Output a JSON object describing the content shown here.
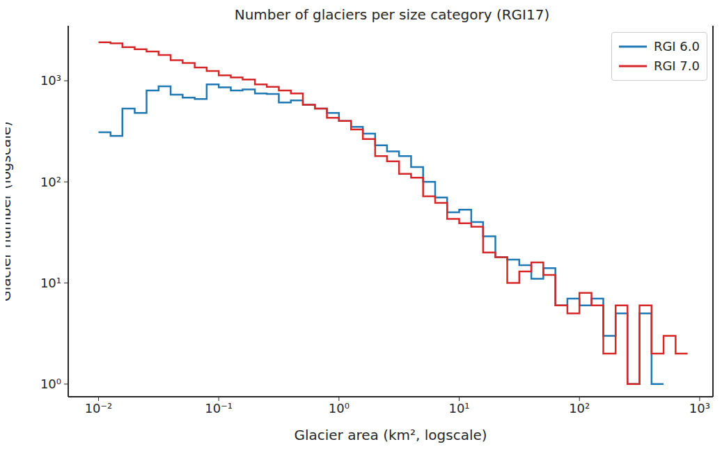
{
  "chart_data": {
    "type": "histogram",
    "title": "Number of glaciers per size category (RGI17)",
    "x_label": "Glacier area (km², logscale)",
    "y_label": "Glacier number (logscale)",
    "bins": [
      0.01,
      0.0126,
      0.0158,
      0.02,
      0.0251,
      0.0316,
      0.0398,
      0.0501,
      0.0631,
      0.0794,
      0.1,
      0.126,
      0.158,
      0.2,
      0.251,
      0.316,
      0.398,
      0.501,
      0.631,
      0.794,
      1,
      1.26,
      1.58,
      2,
      2.51,
      3.16,
      3.98,
      5.01,
      6.31,
      7.94,
      10,
      12.6,
      15.8,
      20,
      25.1,
      31.6,
      39.8,
      50.1,
      63.1,
      79.4,
      100,
      126,
      158,
      200,
      251,
      316,
      398,
      501,
      631,
      794
    ],
    "series": [
      {
        "name": "RGI 6.0",
        "color": "#1f77b4",
        "values": [
          310,
          285,
          530,
          480,
          800,
          880,
          730,
          680,
          660,
          920,
          860,
          800,
          820,
          750,
          740,
          610,
          640,
          580,
          530,
          480,
          400,
          350,
          300,
          230,
          200,
          180,
          140,
          100,
          70,
          50,
          53,
          40,
          29,
          18,
          17,
          15,
          11,
          14,
          6,
          7,
          6,
          7,
          3,
          5,
          1,
          5,
          1,
          null,
          null
        ]
      },
      {
        "name": "RGI 7.0",
        "color": "#d62728",
        "values": [
          2400,
          2350,
          2150,
          2050,
          1950,
          1800,
          1600,
          1500,
          1350,
          1250,
          1130,
          1080,
          1030,
          920,
          870,
          800,
          750,
          580,
          530,
          430,
          400,
          330,
          265,
          180,
          160,
          120,
          110,
          72,
          62,
          43,
          39,
          36,
          20,
          18,
          10,
          13,
          16,
          12,
          6,
          5,
          8,
          6,
          2,
          6,
          1,
          6,
          2,
          3,
          2
        ]
      }
    ],
    "log": true,
    "xlim": [
      0.0056,
      1290
    ],
    "ylim": [
      0.75,
      3500
    ],
    "xticks": [
      {
        "value": 0.01,
        "label": "10⁻²"
      },
      {
        "value": 0.1,
        "label": "10⁻¹"
      },
      {
        "value": 1,
        "label": "10⁰"
      },
      {
        "value": 10,
        "label": "10¹"
      },
      {
        "value": 100,
        "label": "10²"
      },
      {
        "value": 1000,
        "label": "10³"
      }
    ],
    "yticks": [
      {
        "value": 1,
        "label": "10⁰"
      },
      {
        "value": 10,
        "label": "10¹"
      },
      {
        "value": 100,
        "label": "10²"
      },
      {
        "value": 1000,
        "label": "10³"
      }
    ],
    "legend": "upper right",
    "grid": false,
    "line_style": "step"
  }
}
